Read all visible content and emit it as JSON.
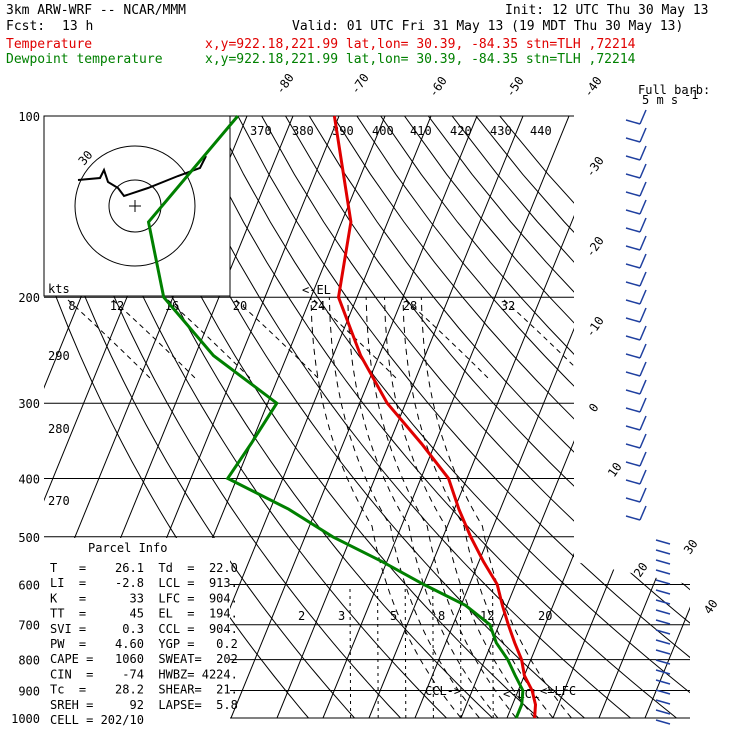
{
  "header": {
    "model": "3km ARW-WRF -- NCAR/MMM",
    "init": "Init: 12 UTC Thu 30 May 13",
    "fcst_label": "Fcst:",
    "fcst_value": "13 h",
    "valid": "Valid: 01 UTC Fri 31 May 13 (19 MDT Thu 30 May 13)",
    "temperature_label": "Temperature",
    "temperature_info": "x,y=922.18,221.99   lat,lon= 30.39, -84.35  stn=TLH ,72214",
    "dewpoint_label": "Dewpoint temperature",
    "dewpoint_info": "x,y=922.18,221.99   lat,lon= 30.39, -84.35  stn=TLH ,72214"
  },
  "colors": {
    "temperature": "#e00000",
    "dewpoint": "#008000",
    "wind": "#2040a0"
  },
  "pressure_labels": [
    "100",
    "200",
    "300",
    "400",
    "500",
    "600",
    "700",
    "800",
    "900",
    "1000"
  ],
  "isotherm_labels": [
    "-80",
    "-70",
    "-60",
    "-50",
    "-40",
    "-30",
    "-20",
    "-10",
    "0",
    "10",
    "20",
    "30",
    "40"
  ],
  "theta_labels": [
    "370",
    "380",
    "390",
    "400",
    "410",
    "420",
    "430",
    "440",
    "290",
    "280",
    "270"
  ],
  "hodograph": {
    "speed_unit": "kts",
    "ring_labels": [
      "8",
      "12",
      "16",
      "20",
      "24",
      "28",
      "32"
    ],
    "inner_label": "30"
  },
  "mixing_ratio_labels": [
    "2",
    "3",
    "5",
    "8",
    "12",
    "20"
  ],
  "level_markers": {
    "el": "<-EL",
    "ccl": "CCL->",
    "lcl": "<-LCL",
    "lfc": "<=LFC"
  },
  "wind_key": {
    "title": "Full barb:",
    "value": "5 m s",
    "sup": "-1"
  },
  "parcel_info": {
    "title": "Parcel Info",
    "rows": [
      "T   =    26.1  Td  =  22.0",
      "LI  =    -2.8  LCL =  913.",
      "K   =      33  LFC =  904.",
      "TT  =      45  EL  =  194.",
      "SVI =     0.3  CCL =  904.",
      "PW  =    4.60  YGP =   0.2",
      "CAPE =   1060  SWEAT=  202",
      "CIN  =    -74  HWBZ= 4224.",
      "Tc  =    28.2  SHEAR=  21.",
      "SREH =     92  LAPSE=  5.8",
      "CELL = 202/10"
    ]
  },
  "chart_data": {
    "type": "line",
    "title": "",
    "xlabel": "",
    "ylabel": "",
    "pressure_levels_hPa": [
      100,
      200,
      300,
      400,
      500,
      600,
      700,
      800,
      900,
      1000
    ],
    "series": [
      {
        "name": "Temperature",
        "points": [
          [
            100,
            -71
          ],
          [
            150,
            -58
          ],
          [
            200,
            -54
          ],
          [
            250,
            -44
          ],
          [
            300,
            -34
          ],
          [
            350,
            -23
          ],
          [
            400,
            -14
          ],
          [
            450,
            -9
          ],
          [
            500,
            -4
          ],
          [
            550,
            1
          ],
          [
            600,
            6
          ],
          [
            650,
            9
          ],
          [
            700,
            12
          ],
          [
            750,
            15
          ],
          [
            800,
            18
          ],
          [
            850,
            20
          ],
          [
            900,
            23
          ],
          [
            950,
            25
          ],
          [
            1000,
            26
          ]
        ]
      },
      {
        "name": "Dewpoint temperature",
        "points": [
          [
            100,
            -92
          ],
          [
            150,
            -102
          ],
          [
            200,
            -92
          ],
          [
            250,
            -76
          ],
          [
            300,
            -58
          ],
          [
            350,
            -60
          ],
          [
            400,
            -62
          ],
          [
            450,
            -46
          ],
          [
            500,
            -34
          ],
          [
            550,
            -21
          ],
          [
            600,
            -10
          ],
          [
            650,
            1
          ],
          [
            700,
            8
          ],
          [
            750,
            11
          ],
          [
            800,
            15
          ],
          [
            850,
            18
          ],
          [
            900,
            21
          ],
          [
            950,
            22
          ],
          [
            1000,
            22
          ]
        ]
      }
    ]
  }
}
